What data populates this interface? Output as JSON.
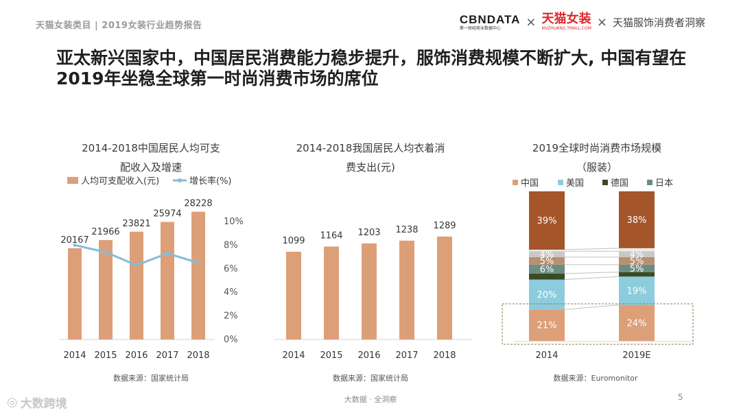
{
  "header": {
    "left": "天猫女装类目 | 2019女装行业趋势报告",
    "brand_cbn": "CBNDATA",
    "brand_cbn_sub": "第一财经商业数据中心",
    "times": "×",
    "brand_tmall": "天猫女装",
    "brand_tmall_sub": "NVZHUANG.TMALL.COM",
    "insight": "天猫服饰消费者洞察"
  },
  "title": "亚太新兴国家中，中国居民消费能力稳步提升，服饰消费规模不断扩大, 中国有望在2019年坐稳全球第一时尚消费市场的席位",
  "colors": {
    "bar": "#dd9f78",
    "line": "#86bcd6",
    "china": "#dd9f78",
    "usa": "#8cccdc",
    "germany": "#3b4a22",
    "japan": "#6a8d84",
    "others_top": "#a4552a",
    "grey": "#c8c8c8",
    "light": "#b89070"
  },
  "charts": {
    "c1": {
      "title_l1": "2014-2018中国居民人均可支",
      "title_l2": "配收入及增速",
      "source": "数据来源：国家统计局"
    },
    "c2": {
      "title_l1": "2014-2018我国居民人均衣着消",
      "title_l2": "费支出(元)",
      "source": "数据来源：国家统计局"
    },
    "c3": {
      "title_l1": "2019全球时尚消费市场规模",
      "title_l2": "（服装）",
      "source": "数据来源：Euromonitor"
    }
  },
  "chart_data": [
    {
      "type": "bar",
      "title": "2014-2018中国居民人均可支配收入及增速",
      "categories": [
        "2014",
        "2015",
        "2016",
        "2017",
        "2018"
      ],
      "series": [
        {
          "name": "人均可支配收入(元)",
          "type": "bar",
          "values": [
            20167,
            21966,
            23821,
            25974,
            28228
          ]
        },
        {
          "name": "增长率(%)",
          "type": "line",
          "axis": "right",
          "values": [
            8.0,
            7.4,
            6.3,
            7.3,
            6.5
          ]
        }
      ],
      "y2_ticks": [
        "0%",
        "2%",
        "4%",
        "6%",
        "8%",
        "10%"
      ],
      "y2lim": [
        0,
        10
      ],
      "legend": "top"
    },
    {
      "type": "bar",
      "title": "2014-2018我国居民人均衣着消费支出(元)",
      "categories": [
        "2014",
        "2015",
        "2016",
        "2017",
        "2018"
      ],
      "values": [
        1099,
        1164,
        1203,
        1238,
        1289
      ]
    },
    {
      "type": "bar",
      "title": "2019全球时尚消费市场规模（服装）",
      "stacked": true,
      "categories": [
        "2014",
        "2019E"
      ],
      "legend_entries": [
        "中国",
        "美国",
        "德国",
        "日本"
      ],
      "legend": "top",
      "series": [
        {
          "name": "中国",
          "values": [
            21,
            24
          ],
          "labels": [
            "21%",
            "24%"
          ]
        },
        {
          "name": "美国",
          "values": [
            20,
            19
          ],
          "labels": [
            "20%",
            "19%"
          ]
        },
        {
          "name": "德国",
          "values": [
            4,
            3
          ],
          "labels": [
            "",
            ""
          ]
        },
        {
          "name": "日本",
          "values": [
            6,
            5
          ],
          "labels": [
            "6%",
            "5%"
          ]
        },
        {
          "values": [
            5,
            5
          ],
          "labels": [
            "5%",
            "5%"
          ]
        },
        {
          "values": [
            4,
            4
          ],
          "labels": [
            "4%",
            "4%"
          ]
        },
        {
          "values": [
            1,
            2
          ],
          "labels": [
            "",
            ""
          ]
        },
        {
          "values": [
            39,
            38
          ],
          "labels": [
            "39%",
            "38%"
          ]
        }
      ]
    }
  ],
  "footer": {
    "center": "大数据 · 全洞察",
    "page": "5",
    "logo_text": "大数跨境"
  }
}
